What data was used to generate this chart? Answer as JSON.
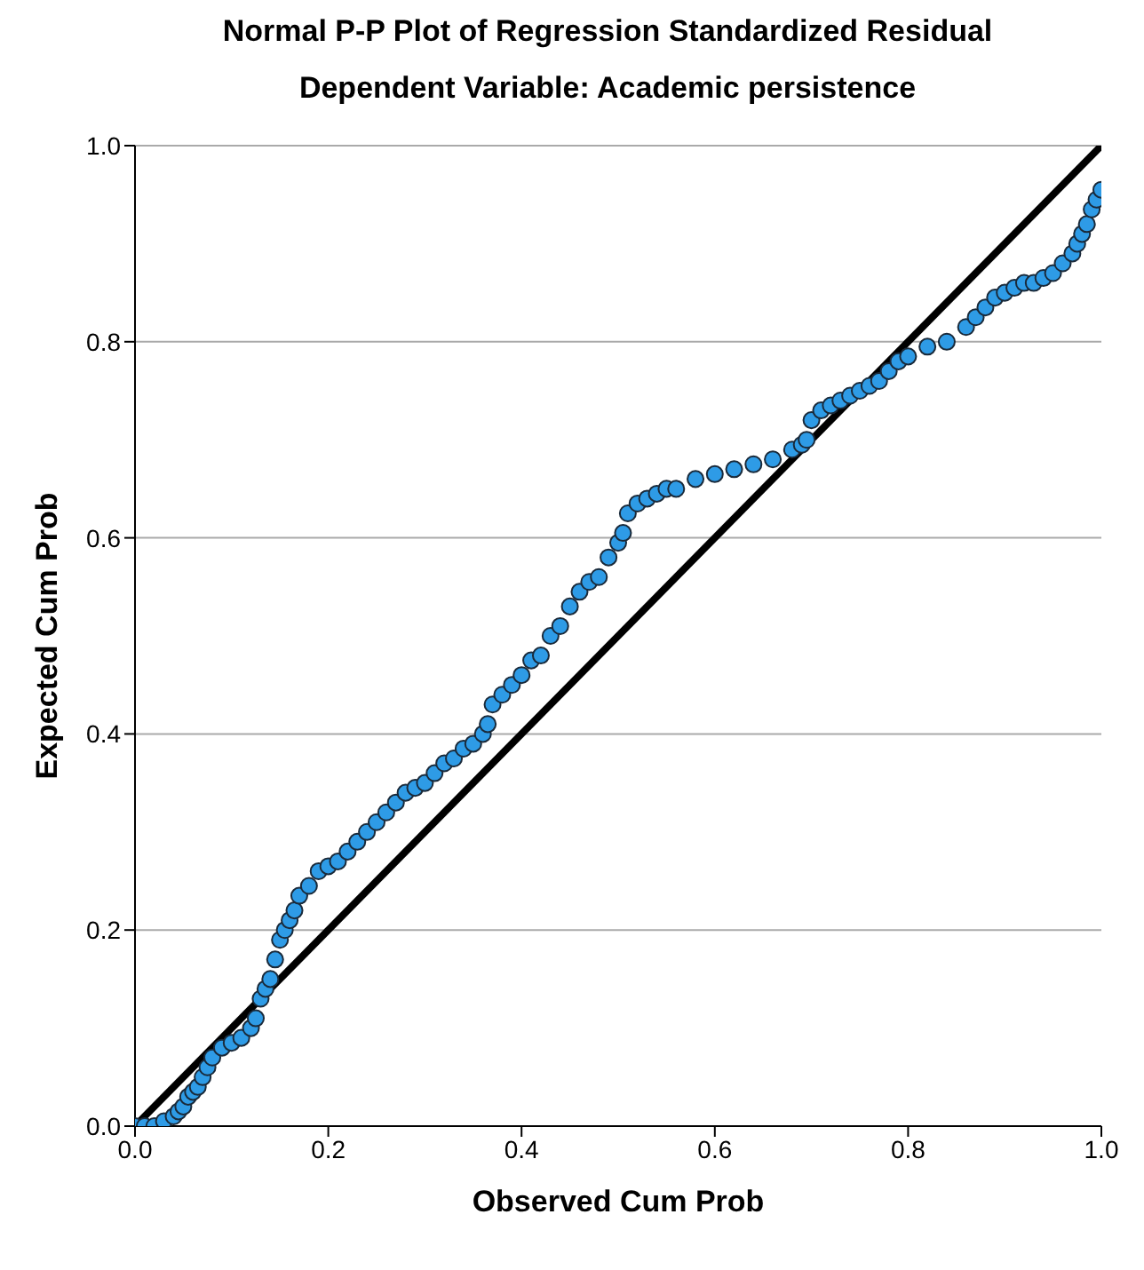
{
  "chart_data": {
    "type": "scatter",
    "title": "Normal P-P Plot of Regression Standardized Residual",
    "subtitle": "Dependent Variable: Academic persistence",
    "xlabel": "Observed Cum Prob",
    "ylabel": "Expected Cum Prob",
    "xlim": [
      0,
      1
    ],
    "ylim": [
      0,
      1
    ],
    "xticks": [
      {
        "value": 0,
        "label": "0.0"
      },
      0.2,
      0.4,
      0.6,
      0.8,
      {
        "value": 1,
        "label": "1.0"
      }
    ],
    "yticks": [
      {
        "value": 0,
        "label": "0.0"
      },
      0.2,
      0.4,
      0.6,
      0.8,
      {
        "value": 1,
        "label": "1.0"
      }
    ],
    "grid": "y",
    "legend": false,
    "series": [
      {
        "marker": "circle",
        "color": "#2e9be6",
        "x": [
          0.0,
          0.01,
          0.02,
          0.03,
          0.04,
          0.045,
          0.05,
          0.055,
          0.06,
          0.065,
          0.07,
          0.075,
          0.08,
          0.09,
          0.1,
          0.11,
          0.12,
          0.125,
          0.13,
          0.135,
          0.14,
          0.145,
          0.15,
          0.155,
          0.16,
          0.165,
          0.17,
          0.18,
          0.19,
          0.2,
          0.21,
          0.22,
          0.23,
          0.24,
          0.25,
          0.26,
          0.27,
          0.28,
          0.29,
          0.3,
          0.31,
          0.32,
          0.33,
          0.34,
          0.35,
          0.36,
          0.365,
          0.37,
          0.38,
          0.39,
          0.4,
          0.41,
          0.42,
          0.43,
          0.44,
          0.45,
          0.46,
          0.47,
          0.48,
          0.49,
          0.5,
          0.505,
          0.51,
          0.52,
          0.53,
          0.54,
          0.55,
          0.56,
          0.58,
          0.6,
          0.62,
          0.64,
          0.66,
          0.68,
          0.69,
          0.695,
          0.7,
          0.71,
          0.72,
          0.73,
          0.74,
          0.75,
          0.76,
          0.77,
          0.78,
          0.79,
          0.8,
          0.82,
          0.84,
          0.86,
          0.87,
          0.88,
          0.89,
          0.9,
          0.91,
          0.92,
          0.93,
          0.94,
          0.95,
          0.96,
          0.97,
          0.975,
          0.98,
          0.985,
          0.99,
          0.995,
          1.0
        ],
        "values": [
          0.0,
          0.0,
          0.0,
          0.005,
          0.01,
          0.015,
          0.02,
          0.03,
          0.035,
          0.04,
          0.05,
          0.06,
          0.07,
          0.08,
          0.085,
          0.09,
          0.1,
          0.11,
          0.13,
          0.14,
          0.15,
          0.17,
          0.19,
          0.2,
          0.21,
          0.22,
          0.235,
          0.245,
          0.26,
          0.265,
          0.27,
          0.28,
          0.29,
          0.3,
          0.31,
          0.32,
          0.33,
          0.34,
          0.345,
          0.35,
          0.36,
          0.37,
          0.375,
          0.385,
          0.39,
          0.4,
          0.41,
          0.43,
          0.44,
          0.45,
          0.46,
          0.475,
          0.48,
          0.5,
          0.51,
          0.53,
          0.545,
          0.555,
          0.56,
          0.58,
          0.595,
          0.605,
          0.625,
          0.635,
          0.64,
          0.645,
          0.65,
          0.65,
          0.66,
          0.665,
          0.67,
          0.675,
          0.68,
          0.69,
          0.695,
          0.7,
          0.72,
          0.73,
          0.735,
          0.74,
          0.745,
          0.75,
          0.755,
          0.76,
          0.77,
          0.78,
          0.785,
          0.795,
          0.8,
          0.815,
          0.825,
          0.835,
          0.845,
          0.85,
          0.855,
          0.86,
          0.86,
          0.865,
          0.87,
          0.88,
          0.89,
          0.9,
          0.91,
          0.92,
          0.935,
          0.945,
          0.955
        ]
      },
      {
        "type": "line",
        "marker": "none",
        "color": "#000000",
        "x": [
          0,
          1
        ],
        "values": [
          0,
          1
        ]
      }
    ]
  }
}
